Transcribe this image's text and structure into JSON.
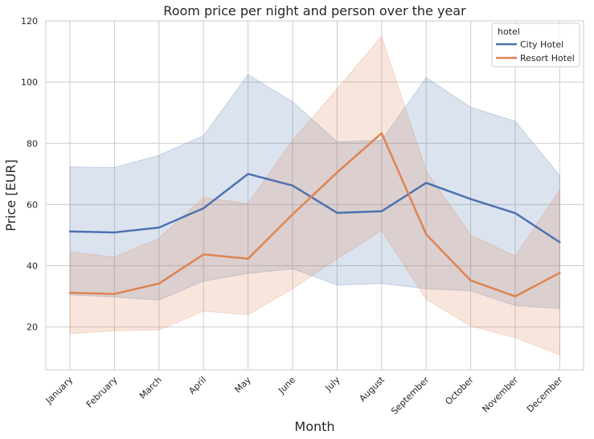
{
  "chart_data": {
    "type": "line",
    "title": "Room price per night and person over the year",
    "xlabel": "Month",
    "ylabel": "Price [EUR]",
    "ylim": [
      6,
      120
    ],
    "yticks": [
      20,
      40,
      60,
      80,
      100,
      120
    ],
    "grid": true,
    "legend_placement": "top-right",
    "legend_title": "hotel",
    "categories": [
      "January",
      "February",
      "March",
      "April",
      "May",
      "June",
      "July",
      "August",
      "September",
      "October",
      "November",
      "December"
    ],
    "series": [
      {
        "name": "City Hotel",
        "color": "#4c72b0",
        "values": [
          51.2,
          50.9,
          52.5,
          58.8,
          70.0,
          66.2,
          57.3,
          57.8,
          67.1,
          61.8,
          57.2,
          47.7
        ],
        "band_upper": [
          72.3,
          72.1,
          76.1,
          82.5,
          102.5,
          93.6,
          80.5,
          81.0,
          101.5,
          91.8,
          87.2,
          69.5
        ],
        "band_lower": [
          30.5,
          29.8,
          28.8,
          35.0,
          37.5,
          39.0,
          33.7,
          34.2,
          32.5,
          31.8,
          27.0,
          26.0
        ]
      },
      {
        "name": "Resort Hotel",
        "color": "#dd8452",
        "values": [
          31.2,
          30.8,
          34.2,
          43.7,
          42.3,
          56.8,
          70.5,
          83.3,
          50.3,
          35.2,
          30.0,
          37.7
        ],
        "band_upper": [
          44.6,
          42.8,
          49.0,
          62.3,
          60.3,
          81.0,
          97.8,
          115.0,
          71.0,
          50.0,
          43.2,
          64.8
        ],
        "band_lower": [
          17.8,
          18.8,
          19.0,
          25.2,
          24.0,
          32.5,
          42.3,
          51.5,
          29.0,
          20.3,
          16.5,
          11.0
        ]
      }
    ]
  }
}
